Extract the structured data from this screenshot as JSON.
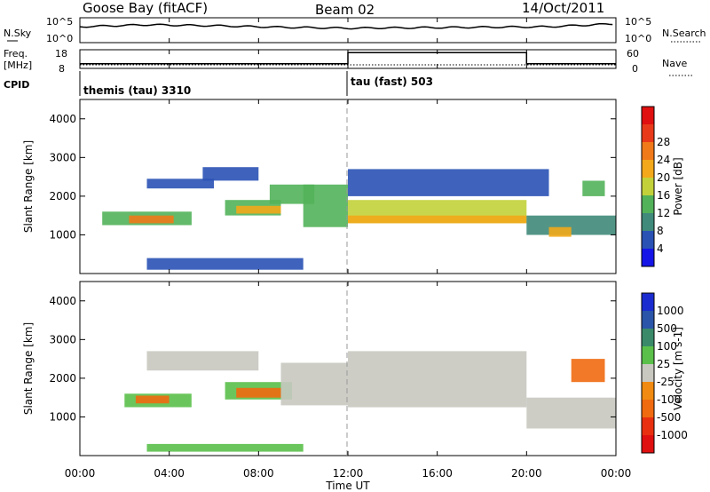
{
  "header": {
    "radar": "Goose Bay (fitACF)",
    "beam": "Beam 02",
    "date": "14/Oct/2011"
  },
  "noise_panel": {
    "left_label": "N.Sky",
    "left_ticks": [
      "10^5",
      "10^0"
    ],
    "right_label": "N.Search",
    "right_ticks": [
      "10^5",
      "10^0"
    ]
  },
  "freq_panel": {
    "left_label_1": "Freq.",
    "left_label_2": "[MHz]",
    "left_ticks": [
      "18",
      "8"
    ],
    "right_label": "Nave",
    "right_ticks": [
      "60",
      "0"
    ]
  },
  "cpid_panel": {
    "label": "CPID",
    "modes": [
      {
        "name": "themis (tau) 3310",
        "start_hour": 0,
        "end_hour": 12
      },
      {
        "name": "tau (fast) 503",
        "start_hour": 12,
        "end_hour": 24
      }
    ]
  },
  "x_axis": {
    "label": "Time UT",
    "ticks": [
      "00:00",
      "04:00",
      "08:00",
      "12:00",
      "16:00",
      "20:00",
      "00:00"
    ]
  },
  "power_colorbar": {
    "label": "Power [dB]",
    "ticks": [
      "4",
      "8",
      "12",
      "16",
      "20",
      "24",
      "28"
    ],
    "colors": [
      "#1515e8",
      "#2a52b5",
      "#3f8a7a",
      "#52b25a",
      "#c2d13a",
      "#f2a81a",
      "#f07a1a",
      "#e83a1a",
      "#e01010"
    ]
  },
  "velocity_colorbar": {
    "label": "Velocity [m s-1]",
    "ticks": [
      "1000",
      "500",
      "100",
      "25",
      "-25",
      "-100",
      "-500",
      "-1000"
    ],
    "colors": [
      "#1a2ccf",
      "#2a55a8",
      "#3a8a6a",
      "#5ac04a",
      "#c8c8c0",
      "#f08a10",
      "#f06a10",
      "#e83010",
      "#e01010"
    ]
  },
  "chart_data": [
    {
      "type": "line",
      "title": "",
      "series": [
        {
          "name": "N.Sky",
          "x_hours": [
            0,
            3,
            6,
            9,
            12,
            15,
            18,
            21,
            24
          ],
          "values_log10": [
            3.2,
            3.6,
            3.4,
            3.1,
            2.9,
            3.0,
            3.1,
            3.2,
            3.8
          ]
        }
      ],
      "ylim_log10": [
        0,
        5
      ]
    },
    {
      "type": "line",
      "series": [
        {
          "name": "Freq. [MHz]",
          "x_hours": [
            0,
            12,
            12,
            20,
            20,
            24
          ],
          "values": [
            10.5,
            10.5,
            16.5,
            16.5,
            10.5,
            10.5
          ]
        }
      ],
      "ylim": [
        8,
        18
      ]
    },
    {
      "type": "heatmap",
      "title": "Power [dB]",
      "xlabel": "Time UT",
      "ylabel": "Slant Range [km]",
      "xlim_hours": [
        0,
        24
      ],
      "ylim": [
        0,
        4500
      ],
      "yticks": [
        1000,
        2000,
        3000,
        4000
      ],
      "regions": [
        {
          "t0": 1.0,
          "t1": 5.0,
          "r0": 1250,
          "r1": 1600,
          "value": 14
        },
        {
          "t0": 2.2,
          "t1": 4.2,
          "r0": 1300,
          "r1": 1500,
          "value": 24
        },
        {
          "t0": 3.0,
          "t1": 6.0,
          "r0": 2200,
          "r1": 2450,
          "value": 6
        },
        {
          "t0": 5.5,
          "t1": 8.0,
          "r0": 2400,
          "r1": 2750,
          "value": 6
        },
        {
          "t0": 6.5,
          "t1": 9.0,
          "r0": 1500,
          "r1": 1900,
          "value": 14
        },
        {
          "t0": 7.0,
          "t1": 9.0,
          "r0": 1550,
          "r1": 1750,
          "value": 22
        },
        {
          "t0": 8.5,
          "t1": 10.5,
          "r0": 1800,
          "r1": 2300,
          "value": 12
        },
        {
          "t0": 10.0,
          "t1": 12.0,
          "r0": 1200,
          "r1": 2300,
          "value": 14
        },
        {
          "t0": 12.0,
          "t1": 20.0,
          "r0": 1300,
          "r1": 1900,
          "value": 16
        },
        {
          "t0": 12.0,
          "t1": 20.0,
          "r0": 1300,
          "r1": 1500,
          "value": 20
        },
        {
          "t0": 12.0,
          "t1": 21.0,
          "r0": 2000,
          "r1": 2700,
          "value": 6
        },
        {
          "t0": 20.0,
          "t1": 24.0,
          "r0": 1000,
          "r1": 1500,
          "value": 10
        },
        {
          "t0": 21.0,
          "t1": 22.0,
          "r0": 950,
          "r1": 1200,
          "value": 20
        },
        {
          "t0": 22.5,
          "t1": 23.5,
          "r0": 2000,
          "r1": 2400,
          "value": 12
        },
        {
          "t0": 3.0,
          "t1": 10.0,
          "r0": 100,
          "r1": 400,
          "value": 6
        }
      ]
    },
    {
      "type": "heatmap",
      "title": "Velocity [m s-1]",
      "xlabel": "Time UT",
      "ylabel": "Slant Range [km]",
      "xlim_hours": [
        0,
        24
      ],
      "ylim": [
        0,
        4500
      ],
      "yticks": [
        1000,
        2000,
        3000,
        4000
      ],
      "regions": [
        {
          "t0": 2.0,
          "t1": 5.0,
          "r0": 1250,
          "r1": 1600,
          "value": 60
        },
        {
          "t0": 2.5,
          "t1": 4.0,
          "r0": 1350,
          "r1": 1550,
          "value": -200
        },
        {
          "t0": 3.0,
          "t1": 8.0,
          "r0": 2200,
          "r1": 2700,
          "value": 0
        },
        {
          "t0": 6.5,
          "t1": 9.5,
          "r0": 1450,
          "r1": 1900,
          "value": 70
        },
        {
          "t0": 7.0,
          "t1": 9.0,
          "r0": 1500,
          "r1": 1750,
          "value": -300
        },
        {
          "t0": 9.0,
          "t1": 12.0,
          "r0": 1300,
          "r1": 2400,
          "value": 0
        },
        {
          "t0": 12.0,
          "t1": 20.0,
          "r0": 1250,
          "r1": 2700,
          "value": 0
        },
        {
          "t0": 20.0,
          "t1": 24.0,
          "r0": 700,
          "r1": 1500,
          "value": 0
        },
        {
          "t0": 22.0,
          "t1": 23.5,
          "r0": 1900,
          "r1": 2500,
          "value": -300
        },
        {
          "t0": 3.0,
          "t1": 10.0,
          "r0": 100,
          "r1": 300,
          "value": 60
        }
      ]
    }
  ]
}
